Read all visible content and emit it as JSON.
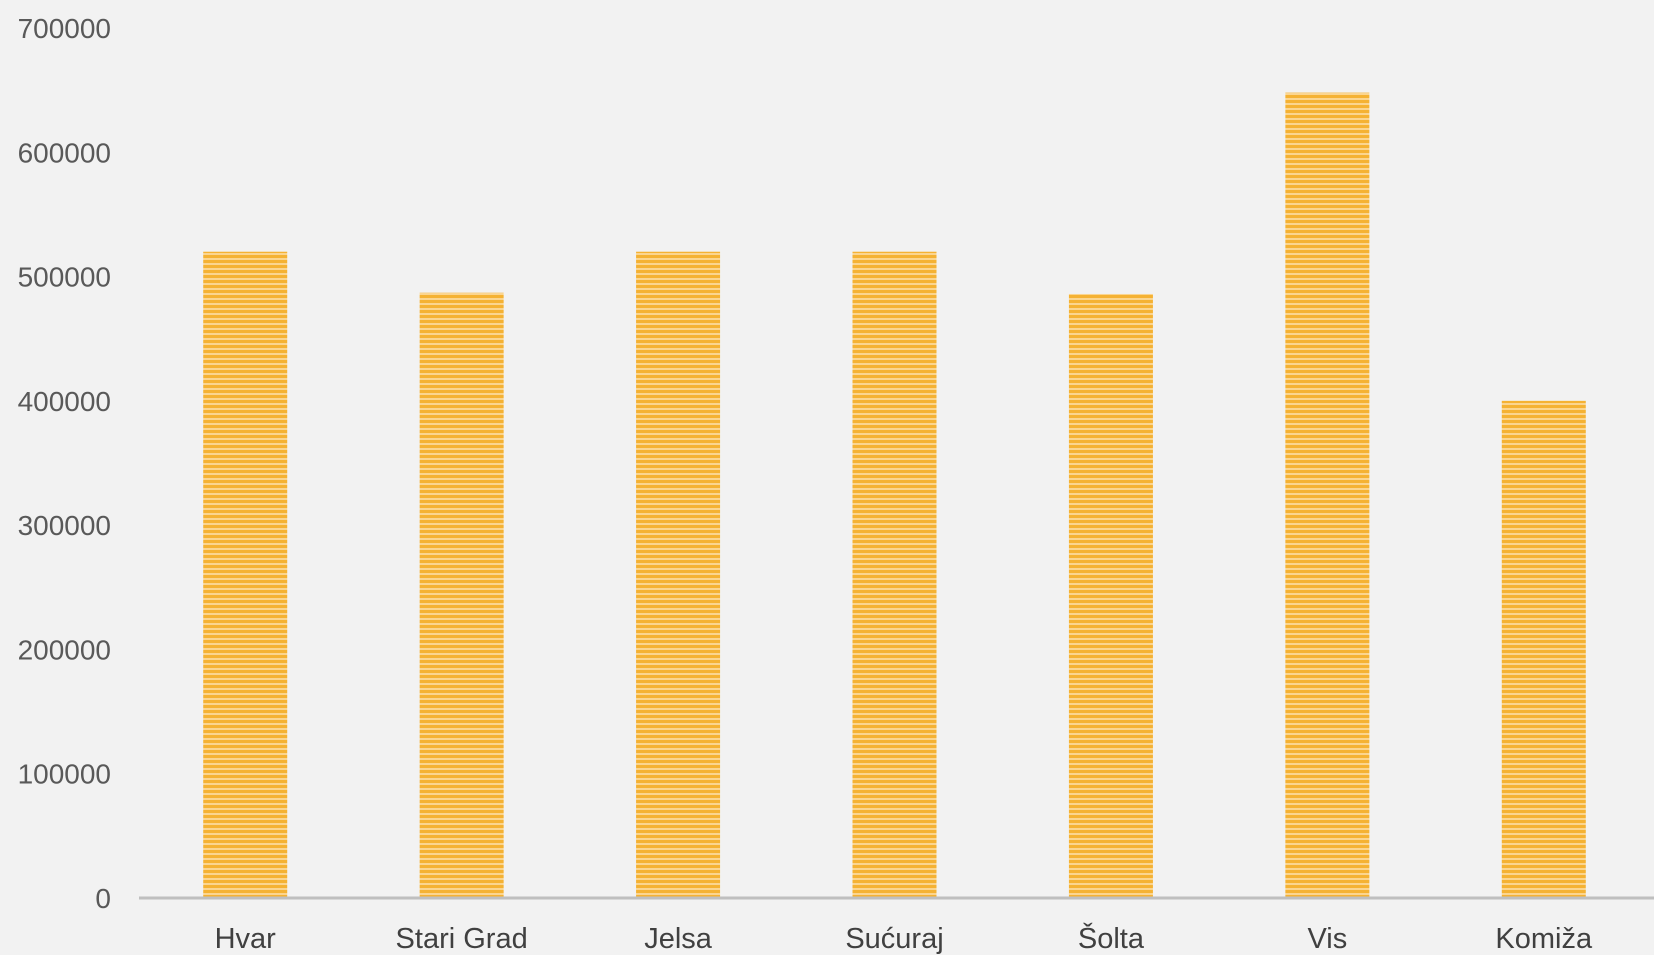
{
  "chart_data": {
    "type": "bar",
    "categories": [
      "Hvar",
      "Stari Grad",
      "Jelsa",
      "Sućuraj",
      "Šolta",
      "Vis",
      "Komiža"
    ],
    "values": [
      520000,
      487000,
      520000,
      520000,
      486000,
      648000,
      400000
    ],
    "title": "",
    "xlabel": "",
    "ylabel": "",
    "ylim": [
      0,
      700000
    ],
    "yticks": [
      "0",
      "100000",
      "200000",
      "300000",
      "400000",
      "500000",
      "600000",
      "700000"
    ],
    "grid": false,
    "legend": "none",
    "colors": {
      "bar": "#f5b233",
      "bar_stripe": "#fbd58f",
      "axis": "#bfbfbf",
      "background": "#f2f2f2"
    }
  }
}
